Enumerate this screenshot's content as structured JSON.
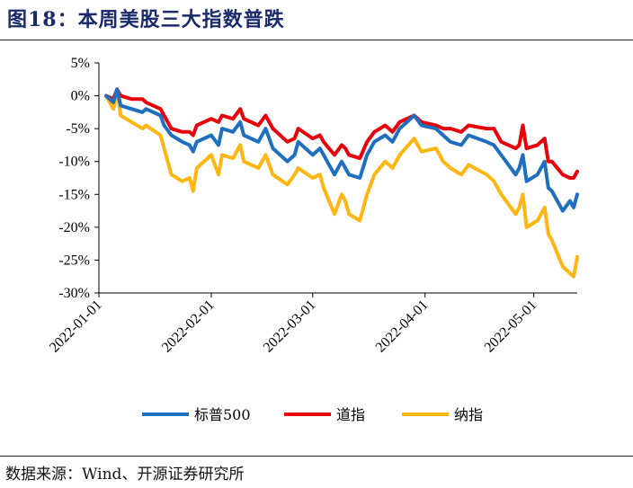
{
  "figure": {
    "title": "图18：本周美股三大指数普跌",
    "source": "数据来源：Wind、开源证券研究所"
  },
  "chart_data": {
    "type": "line",
    "title": "",
    "xlabel": "",
    "ylabel": "",
    "ylim": [
      -30,
      5
    ],
    "yticks": [
      "5%",
      "0%",
      "-5%",
      "-10%",
      "-15%",
      "-20%",
      "-25%",
      "-30%"
    ],
    "ytick_values": [
      5,
      0,
      -5,
      -10,
      -15,
      -20,
      -25,
      -30
    ],
    "xlim": [
      "2022-01-01",
      "2022-05-13"
    ],
    "xticks": [
      "2022-01-01",
      "2022-02-01",
      "2022-03-01",
      "2022-04-01",
      "2022-05-01"
    ],
    "grid": false,
    "legend": "bottom",
    "series": [
      {
        "name": "标普500",
        "color": "#1f6fc0",
        "points": [
          [
            "2022-01-03",
            0
          ],
          [
            "2022-01-05",
            -1
          ],
          [
            "2022-01-06",
            1
          ],
          [
            "2022-01-07",
            -1.5
          ],
          [
            "2022-01-10",
            -2
          ],
          [
            "2022-01-13",
            -2.5
          ],
          [
            "2022-01-14",
            -2
          ],
          [
            "2022-01-18",
            -3
          ],
          [
            "2022-01-19",
            -4.5
          ],
          [
            "2022-01-21",
            -6
          ],
          [
            "2022-01-24",
            -7
          ],
          [
            "2022-01-26",
            -7.5
          ],
          [
            "2022-01-27",
            -8.5
          ],
          [
            "2022-01-28",
            -7
          ],
          [
            "2022-02-01",
            -6
          ],
          [
            "2022-02-03",
            -7.5
          ],
          [
            "2022-02-04",
            -5
          ],
          [
            "2022-02-07",
            -5.5
          ],
          [
            "2022-02-09",
            -4
          ],
          [
            "2022-02-10",
            -6
          ],
          [
            "2022-02-14",
            -7
          ],
          [
            "2022-02-16",
            -5
          ],
          [
            "2022-02-18",
            -8
          ],
          [
            "2022-02-22",
            -10
          ],
          [
            "2022-02-24",
            -9
          ],
          [
            "2022-02-25",
            -7
          ],
          [
            "2022-03-01",
            -9
          ],
          [
            "2022-03-03",
            -8
          ],
          [
            "2022-03-04",
            -9
          ],
          [
            "2022-03-07",
            -12
          ],
          [
            "2022-03-09",
            -10
          ],
          [
            "2022-03-10",
            -11
          ],
          [
            "2022-03-11",
            -12
          ],
          [
            "2022-03-14",
            -12.5
          ],
          [
            "2022-03-16",
            -9
          ],
          [
            "2022-03-18",
            -7
          ],
          [
            "2022-03-21",
            -6
          ],
          [
            "2022-03-23",
            -7
          ],
          [
            "2022-03-25",
            -5
          ],
          [
            "2022-03-29",
            -3
          ],
          [
            "2022-03-31",
            -4.5
          ],
          [
            "2022-04-04",
            -5
          ],
          [
            "2022-04-06",
            -6
          ],
          [
            "2022-04-08",
            -7
          ],
          [
            "2022-04-11",
            -7.5
          ],
          [
            "2022-04-13",
            -6
          ],
          [
            "2022-04-18",
            -7
          ],
          [
            "2022-04-20",
            -7.5
          ],
          [
            "2022-04-22",
            -9
          ],
          [
            "2022-04-26",
            -12
          ],
          [
            "2022-04-27",
            -11
          ],
          [
            "2022-04-28",
            -9
          ],
          [
            "2022-04-29",
            -13
          ],
          [
            "2022-05-02",
            -12
          ],
          [
            "2022-05-04",
            -10
          ],
          [
            "2022-05-05",
            -14
          ],
          [
            "2022-05-06",
            -14.5
          ],
          [
            "2022-05-09",
            -17.5
          ],
          [
            "2022-05-11",
            -16
          ],
          [
            "2022-05-12",
            -17
          ],
          [
            "2022-05-13",
            -15
          ]
        ]
      },
      {
        "name": "道指",
        "color": "#e8000b",
        "points": [
          [
            "2022-01-03",
            0
          ],
          [
            "2022-01-05",
            -0.5
          ],
          [
            "2022-01-06",
            1
          ],
          [
            "2022-01-07",
            0
          ],
          [
            "2022-01-10",
            -0.5
          ],
          [
            "2022-01-13",
            -0.5
          ],
          [
            "2022-01-14",
            -1
          ],
          [
            "2022-01-18",
            -2
          ],
          [
            "2022-01-19",
            -3
          ],
          [
            "2022-01-21",
            -5
          ],
          [
            "2022-01-24",
            -5.5
          ],
          [
            "2022-01-26",
            -5.5
          ],
          [
            "2022-01-27",
            -6
          ],
          [
            "2022-01-28",
            -4.5
          ],
          [
            "2022-02-01",
            -3.5
          ],
          [
            "2022-02-03",
            -4
          ],
          [
            "2022-02-04",
            -3
          ],
          [
            "2022-02-07",
            -3.5
          ],
          [
            "2022-02-09",
            -2
          ],
          [
            "2022-02-10",
            -3.5
          ],
          [
            "2022-02-14",
            -4.5
          ],
          [
            "2022-02-16",
            -3
          ],
          [
            "2022-02-18",
            -5
          ],
          [
            "2022-02-22",
            -7
          ],
          [
            "2022-02-24",
            -6.5
          ],
          [
            "2022-02-25",
            -5
          ],
          [
            "2022-03-01",
            -6.5
          ],
          [
            "2022-03-03",
            -6
          ],
          [
            "2022-03-04",
            -7
          ],
          [
            "2022-03-07",
            -9
          ],
          [
            "2022-03-09",
            -7.5
          ],
          [
            "2022-03-10",
            -8
          ],
          [
            "2022-03-11",
            -9
          ],
          [
            "2022-03-14",
            -9.5
          ],
          [
            "2022-03-16",
            -7
          ],
          [
            "2022-03-18",
            -5.5
          ],
          [
            "2022-03-21",
            -4.5
          ],
          [
            "2022-03-23",
            -5.5
          ],
          [
            "2022-03-25",
            -4
          ],
          [
            "2022-03-29",
            -3
          ],
          [
            "2022-03-31",
            -4
          ],
          [
            "2022-04-04",
            -4.5
          ],
          [
            "2022-04-06",
            -5
          ],
          [
            "2022-04-08",
            -5
          ],
          [
            "2022-04-11",
            -5.5
          ],
          [
            "2022-04-13",
            -4.5
          ],
          [
            "2022-04-18",
            -5
          ],
          [
            "2022-04-20",
            -5
          ],
          [
            "2022-04-22",
            -7
          ],
          [
            "2022-04-26",
            -8
          ],
          [
            "2022-04-27",
            -7.5
          ],
          [
            "2022-04-28",
            -4.5
          ],
          [
            "2022-04-29",
            -8
          ],
          [
            "2022-05-02",
            -7.5
          ],
          [
            "2022-05-04",
            -6.5
          ],
          [
            "2022-05-05",
            -10
          ],
          [
            "2022-05-06",
            -10
          ],
          [
            "2022-05-09",
            -12
          ],
          [
            "2022-05-11",
            -12.5
          ],
          [
            "2022-05-12",
            -12.5
          ],
          [
            "2022-05-13",
            -11.5
          ]
        ]
      },
      {
        "name": "纳指",
        "color": "#ffb612",
        "points": [
          [
            "2022-01-03",
            0
          ],
          [
            "2022-01-05",
            -2
          ],
          [
            "2022-01-06",
            1
          ],
          [
            "2022-01-07",
            -3
          ],
          [
            "2022-01-10",
            -4
          ],
          [
            "2022-01-13",
            -5
          ],
          [
            "2022-01-14",
            -4.5
          ],
          [
            "2022-01-18",
            -6
          ],
          [
            "2022-01-19",
            -8
          ],
          [
            "2022-01-21",
            -12
          ],
          [
            "2022-01-24",
            -13
          ],
          [
            "2022-01-26",
            -12.5
          ],
          [
            "2022-01-27",
            -14.5
          ],
          [
            "2022-01-28",
            -11
          ],
          [
            "2022-02-01",
            -9
          ],
          [
            "2022-02-03",
            -12
          ],
          [
            "2022-02-04",
            -9
          ],
          [
            "2022-02-07",
            -9.5
          ],
          [
            "2022-02-09",
            -7.5
          ],
          [
            "2022-02-10",
            -10
          ],
          [
            "2022-02-14",
            -11
          ],
          [
            "2022-02-16",
            -9
          ],
          [
            "2022-02-18",
            -12
          ],
          [
            "2022-02-22",
            -13.5
          ],
          [
            "2022-02-24",
            -12
          ],
          [
            "2022-02-25",
            -11
          ],
          [
            "2022-03-01",
            -12.5
          ],
          [
            "2022-03-03",
            -12
          ],
          [
            "2022-03-04",
            -14
          ],
          [
            "2022-03-07",
            -18
          ],
          [
            "2022-03-09",
            -15
          ],
          [
            "2022-03-10",
            -16
          ],
          [
            "2022-03-11",
            -18
          ],
          [
            "2022-03-14",
            -19
          ],
          [
            "2022-03-16",
            -15
          ],
          [
            "2022-03-18",
            -12
          ],
          [
            "2022-03-21",
            -10
          ],
          [
            "2022-03-23",
            -11
          ],
          [
            "2022-03-25",
            -9
          ],
          [
            "2022-03-29",
            -6.5
          ],
          [
            "2022-03-31",
            -8.5
          ],
          [
            "2022-04-04",
            -8
          ],
          [
            "2022-04-06",
            -10
          ],
          [
            "2022-04-08",
            -11
          ],
          [
            "2022-04-11",
            -12
          ],
          [
            "2022-04-13",
            -10.5
          ],
          [
            "2022-04-18",
            -12
          ],
          [
            "2022-04-20",
            -13
          ],
          [
            "2022-04-22",
            -15
          ],
          [
            "2022-04-26",
            -18
          ],
          [
            "2022-04-27",
            -17
          ],
          [
            "2022-04-28",
            -15
          ],
          [
            "2022-04-29",
            -20
          ],
          [
            "2022-05-02",
            -19
          ],
          [
            "2022-05-04",
            -17
          ],
          [
            "2022-05-05",
            -21
          ],
          [
            "2022-05-06",
            -22
          ],
          [
            "2022-05-09",
            -26
          ],
          [
            "2022-05-11",
            -27
          ],
          [
            "2022-05-12",
            -27.5
          ],
          [
            "2022-05-13",
            -24.5
          ]
        ]
      }
    ]
  }
}
